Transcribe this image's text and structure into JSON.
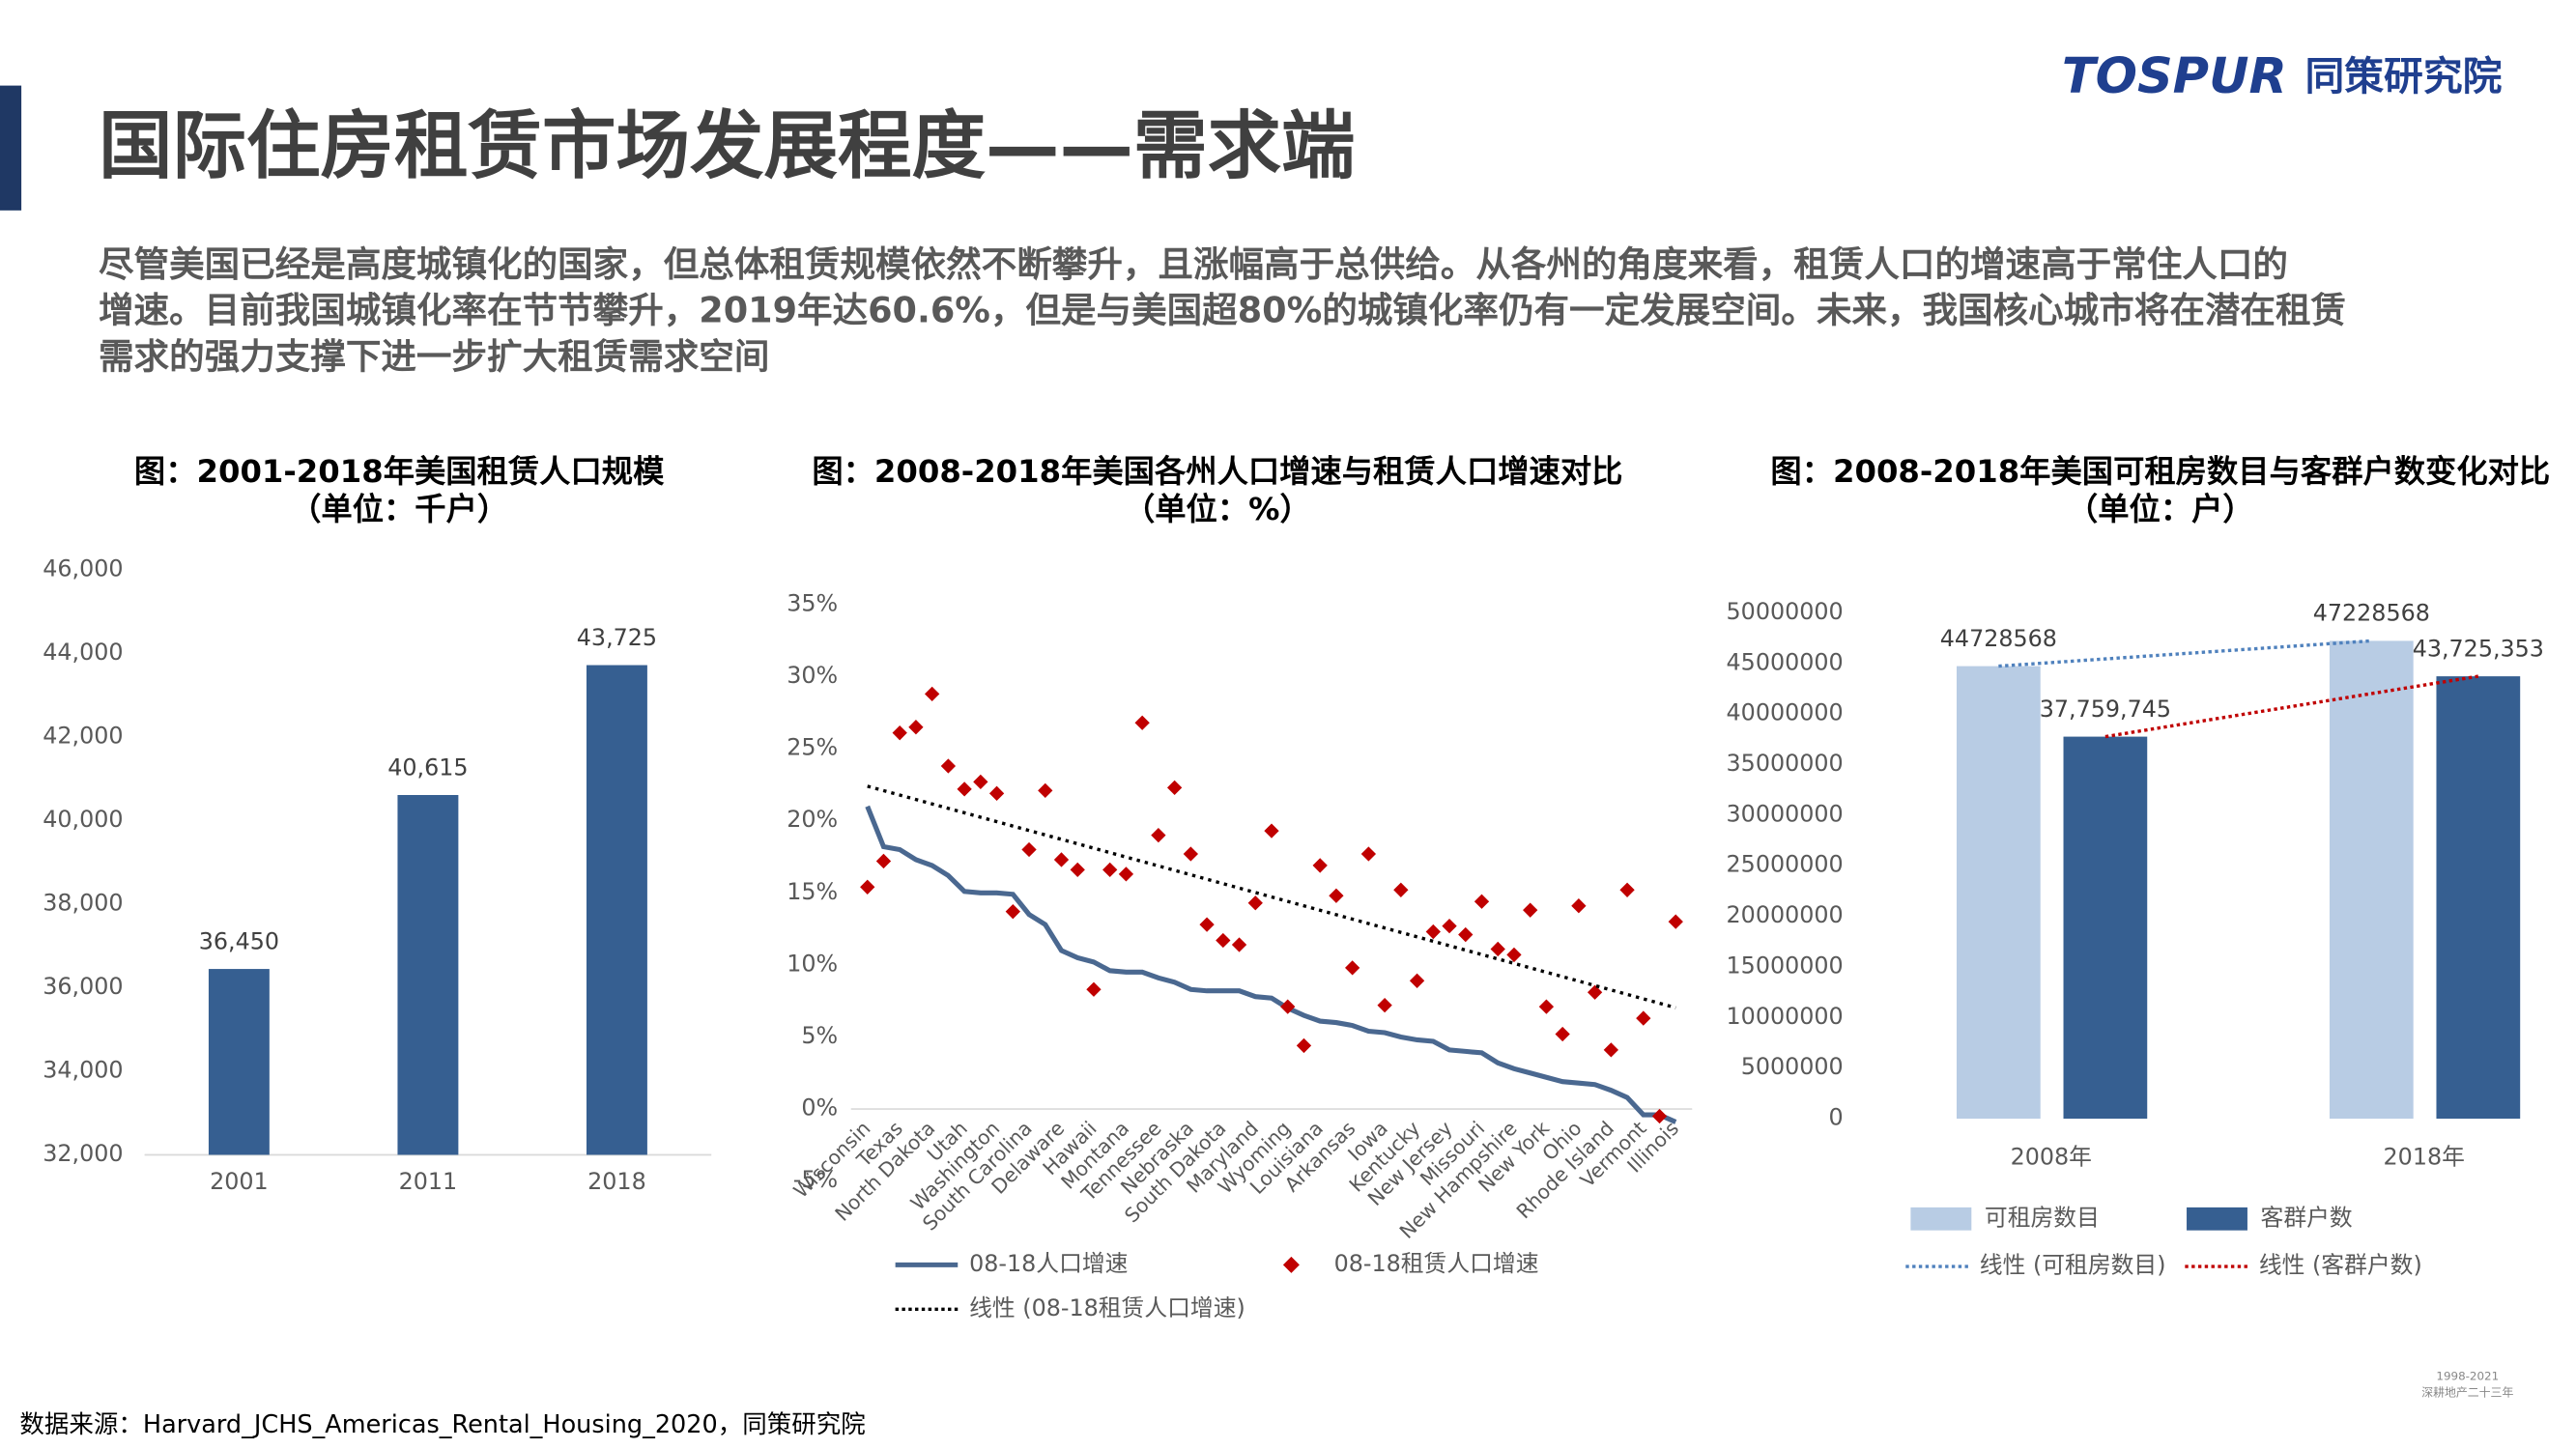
{
  "title": "国际住房租赁市场发展程度——需求端",
  "intro": [
    "尽管美国已经是高度城镇化的国家，但总体租赁规模依然不断攀升，且涨幅高于总供给。从各州的角度来看，租赁人口的增速高于常住人口的",
    "增速。目前我国城镇化率在节节攀升，2019年达60.6%，但是与美国超80%的城镇化率仍有一定发展空间。未来，我国核心城市将在潜在租赁",
    "需求的强力支撑下进一步扩大租赁需求空间"
  ],
  "logo": {
    "brand": "TOSPUR",
    "name": "同策研究院"
  },
  "badge": {
    "years": "1998-2021",
    "text": "深耕地产二十三年"
  },
  "source": "数据来源：Harvard_JCHS_Americas_Rental_Housing_2020，同策研究院",
  "chart_data": [
    {
      "type": "bar",
      "title": "图：2001-2018年美国租赁人口规模",
      "subtitle": "（单位：千户）",
      "categories": [
        "2001",
        "2011",
        "2018"
      ],
      "values": [
        36450,
        40615,
        43725
      ],
      "value_labels": [
        "36,450",
        "40,615",
        "43,725"
      ],
      "color": "#365f91",
      "ylim": [
        32000,
        46000
      ],
      "yticks": [
        {
          "value": 32000,
          "label": "32,000"
        },
        {
          "value": 34000,
          "label": "34,000"
        },
        {
          "value": 36000,
          "label": "36,000"
        },
        {
          "value": 38000,
          "label": "38,000"
        },
        {
          "value": 40000,
          "label": "40,000"
        },
        {
          "value": 42000,
          "label": "42,000"
        },
        {
          "value": 44000,
          "label": "44,000"
        },
        {
          "value": 46000,
          "label": "46,000"
        }
      ]
    },
    {
      "type": "line",
      "title": "图：2008-2018年美国各州人口增速与租赁人口增速对比",
      "subtitle": "（单位：%）",
      "categories": [
        "Wisconsin",
        null,
        "Texas",
        null,
        "North Dakota",
        null,
        "Utah",
        null,
        "Washington",
        null,
        "South Carolina",
        null,
        "Delaware",
        null,
        "Hawaii",
        null,
        "Montana",
        null,
        "Tennessee",
        null,
        "Nebraska",
        null,
        "South Dakota",
        null,
        "Maryland",
        null,
        "Wyoming",
        null,
        "Louisiana",
        null,
        "Arkansas",
        null,
        "Iowa",
        null,
        "Kentucky",
        null,
        "New Jersey",
        null,
        "Missouri",
        null,
        "New Hampshire",
        null,
        "New York",
        null,
        "Ohio",
        null,
        "Rhode Island",
        null,
        "Vermont",
        null,
        "Illinois"
      ],
      "series": [
        {
          "name": "08-18人口增速",
          "type": "line",
          "color": "#4a6890",
          "values": [
            21.0,
            18.2,
            18.0,
            17.3,
            16.9,
            16.2,
            15.1,
            15.0,
            15.0,
            14.9,
            13.5,
            12.8,
            11.0,
            10.5,
            10.2,
            9.6,
            9.5,
            9.5,
            9.1,
            8.8,
            8.3,
            8.2,
            8.2,
            8.2,
            7.8,
            7.7,
            7.0,
            6.5,
            6.1,
            6.0,
            5.8,
            5.4,
            5.3,
            5.0,
            4.8,
            4.7,
            4.1,
            4.0,
            3.9,
            3.2,
            2.8,
            2.5,
            2.2,
            1.9,
            1.8,
            1.7,
            1.3,
            0.8,
            -0.4,
            -0.4,
            -0.9
          ]
        },
        {
          "name": "08-18租赁人口增速",
          "type": "scatter",
          "marker": "diamond",
          "color": "#c00000",
          "values": [
            15.4,
            17.2,
            26.1,
            26.5,
            28.8,
            23.8,
            22.2,
            22.7,
            21.9,
            13.7,
            18.0,
            22.1,
            17.3,
            16.6,
            8.3,
            16.6,
            16.3,
            26.8,
            19.0,
            22.3,
            17.7,
            12.8,
            11.7,
            11.4,
            14.3,
            19.3,
            7.1,
            4.4,
            16.9,
            14.8,
            9.8,
            17.7,
            7.2,
            15.2,
            8.9,
            12.3,
            12.7,
            12.1,
            14.4,
            11.1,
            10.7,
            13.8,
            7.1,
            5.2,
            14.1,
            8.1,
            4.1,
            15.2,
            6.3,
            -0.5,
            13.0
          ],
          "trendline": {
            "type": "linear",
            "name": "线性 (08-18租赁人口增速)",
            "color": "#000000"
          }
        }
      ],
      "ylim": [
        -5,
        35
      ],
      "yticks": [
        {
          "value": -5,
          "label": "-5%"
        },
        {
          "value": 0,
          "label": "0%"
        },
        {
          "value": 5,
          "label": "5%"
        },
        {
          "value": 10,
          "label": "10%"
        },
        {
          "value": 15,
          "label": "15%"
        },
        {
          "value": 20,
          "label": "20%"
        },
        {
          "value": 25,
          "label": "25%"
        },
        {
          "value": 30,
          "label": "30%"
        },
        {
          "value": 35,
          "label": "35%"
        }
      ]
    },
    {
      "type": "bar",
      "title": "图：2008-2018年美国可租房数目与客群户数变化对比",
      "subtitle": "（单位：户）",
      "categories": [
        "2008年",
        "2018年"
      ],
      "series": [
        {
          "name": "可租房数目",
          "color": "#b8cce4",
          "values": [
            44728568,
            47228568
          ],
          "trendline": {
            "type": "linear",
            "name": "线性 (可租房数目)",
            "color": "#4f81bd"
          }
        },
        {
          "name": "客群户数",
          "color": "#365f91",
          "values": [
            37759745,
            43725353
          ],
          "value_labels": [
            "37,759,745",
            "43,725,353"
          ],
          "trendline": {
            "type": "linear",
            "name": "线性 (客群户数)",
            "color": "#c00000"
          }
        }
      ],
      "ylim": [
        0,
        50000000
      ],
      "yticks": [
        0,
        5000000,
        10000000,
        15000000,
        20000000,
        25000000,
        30000000,
        35000000,
        40000000,
        45000000,
        50000000
      ]
    }
  ]
}
